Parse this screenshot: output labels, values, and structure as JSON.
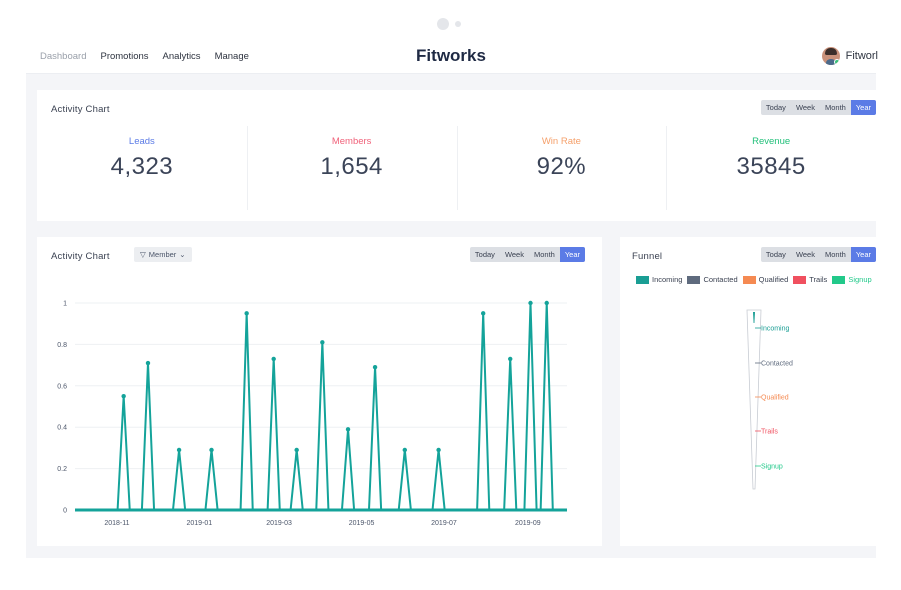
{
  "nav": {
    "items": [
      {
        "label": "Dashboard",
        "muted": true
      },
      {
        "label": "Promotions"
      },
      {
        "label": "Analytics"
      },
      {
        "label": "Manage"
      }
    ]
  },
  "brand": "Fitworks",
  "user": {
    "name": "Fitworl"
  },
  "activity_summary": {
    "title": "Activity Chart",
    "ranges": [
      "Today",
      "Week",
      "Month",
      "Year"
    ],
    "selected_range": "Year",
    "stats": [
      {
        "label": "Leads",
        "value": "4,323",
        "color": "#5b7be6"
      },
      {
        "label": "Members",
        "value": "1,654",
        "color": "#f0627a"
      },
      {
        "label": "Win Rate",
        "value": "92%",
        "color": "#f5a06b"
      },
      {
        "label": "Revenue",
        "value": "35845",
        "color": "#22c07a"
      }
    ]
  },
  "activity_chart": {
    "title": "Activity Chart",
    "filter_label": "Member",
    "ranges": [
      "Today",
      "Week",
      "Month",
      "Year"
    ],
    "selected_range": "Year"
  },
  "funnel": {
    "title": "Funnel",
    "ranges": [
      "Today",
      "Week",
      "Month",
      "Year"
    ],
    "selected_range": "Year",
    "legend": [
      {
        "label": "Incoming",
        "color": "#1a9e94"
      },
      {
        "label": "Contacted",
        "color": "#5f6b7e"
      },
      {
        "label": "Qualified",
        "color": "#f58a52"
      },
      {
        "label": "Trails",
        "color": "#f0505f"
      },
      {
        "label": "Signup",
        "color": "#22c98a"
      }
    ]
  },
  "chart_data": [
    {
      "type": "line",
      "title": "Activity Chart",
      "color": "#14a39a",
      "ylim": [
        0,
        1
      ],
      "yticks": [
        0,
        0.2,
        0.4,
        0.6,
        0.8,
        1
      ],
      "xtick_labels": [
        "2018-11",
        "2019-01",
        "2019-03",
        "2019-05",
        "2019-07",
        "2019-09"
      ],
      "xtick_dates": [
        "2018-11-01",
        "2019-01-01",
        "2019-03-01",
        "2019-05-01",
        "2019-07-01",
        "2019-09-01"
      ],
      "xlim": [
        "2018-10-01",
        "2019-09-30"
      ],
      "grid": true,
      "points": [
        {
          "x": "2018-11-06",
          "y": 0.55
        },
        {
          "x": "2018-11-24",
          "y": 0.71
        },
        {
          "x": "2018-12-17",
          "y": 0.29
        },
        {
          "x": "2019-01-10",
          "y": 0.29
        },
        {
          "x": "2019-02-05",
          "y": 0.95
        },
        {
          "x": "2019-02-25",
          "y": 0.73
        },
        {
          "x": "2019-03-14",
          "y": 0.29
        },
        {
          "x": "2019-04-02",
          "y": 0.81
        },
        {
          "x": "2019-04-21",
          "y": 0.39
        },
        {
          "x": "2019-05-11",
          "y": 0.69
        },
        {
          "x": "2019-06-02",
          "y": 0.29
        },
        {
          "x": "2019-06-27",
          "y": 0.29
        },
        {
          "x": "2019-07-30",
          "y": 0.95
        },
        {
          "x": "2019-08-19",
          "y": 0.73
        },
        {
          "x": "2019-09-03",
          "y": 1.0
        },
        {
          "x": "2019-09-15",
          "y": 1.0
        }
      ]
    },
    {
      "type": "funnel",
      "title": "Funnel",
      "categories": [
        "Incoming",
        "Contacted",
        "Qualified",
        "Trails",
        "Signup"
      ],
      "colors": [
        "#1a9e94",
        "#5f6b7e",
        "#f58a52",
        "#f0505f",
        "#22c98a"
      ]
    }
  ]
}
